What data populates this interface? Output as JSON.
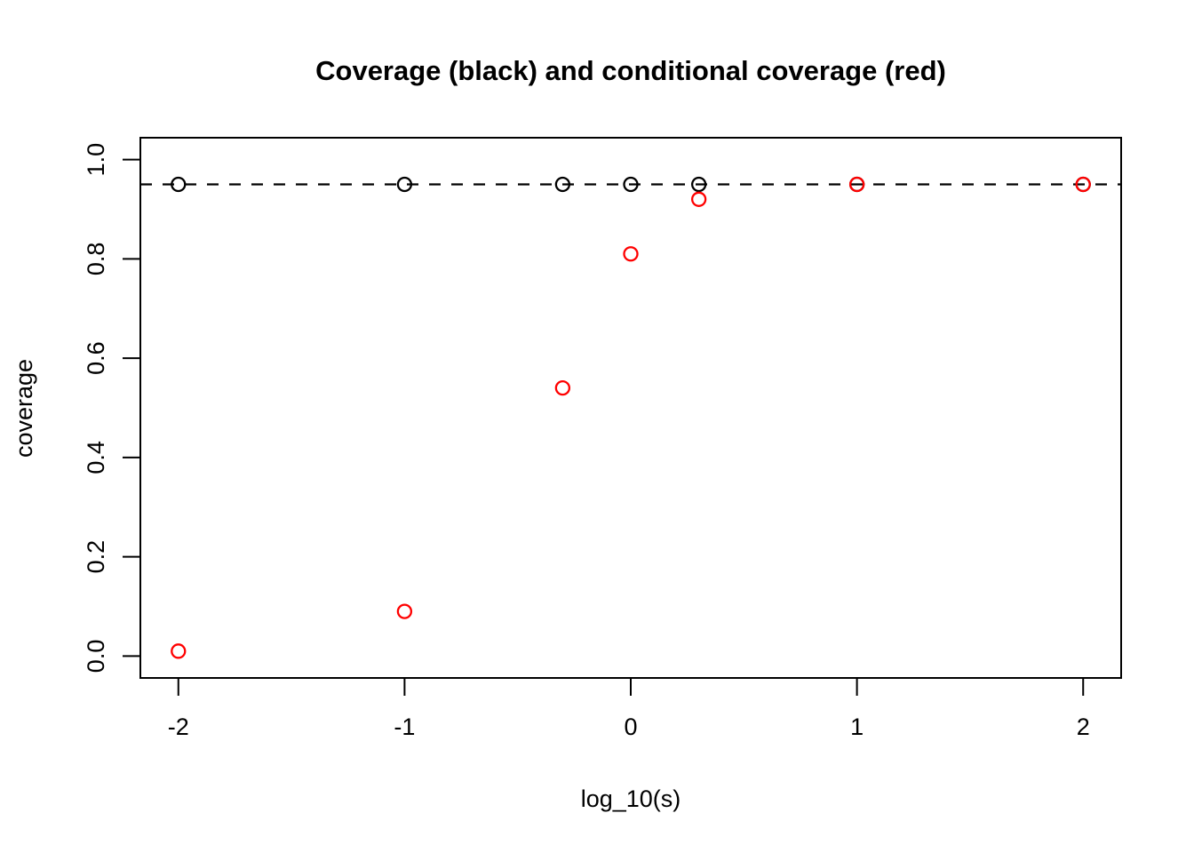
{
  "chart_data": {
    "type": "scatter",
    "title": "Coverage (black) and conditional coverage (red)",
    "xlabel": "log_10(s)",
    "ylabel": "coverage",
    "xlim": [
      -2.168,
      2.168
    ],
    "ylim": [
      -0.044,
      1.044
    ],
    "grid": false,
    "legend": "none (encoded in title colors)",
    "x_ticks": {
      "values": [
        -2,
        -1,
        0,
        1,
        2
      ],
      "labels": [
        "-2",
        "-1",
        "0",
        "1",
        "2"
      ]
    },
    "y_ticks": {
      "values": [
        0.0,
        0.2,
        0.4,
        0.6,
        0.8,
        1.0
      ],
      "labels": [
        "0.0",
        "0.2",
        "0.4",
        "0.6",
        "0.8",
        "1.0"
      ]
    },
    "reference_line": {
      "y": 0.95,
      "style": "dashed",
      "color": "#000000"
    },
    "x": [
      -2,
      -1,
      -0.301,
      0,
      0.301,
      1,
      2
    ],
    "series": [
      {
        "name": "coverage",
        "color": "#000000",
        "values": [
          0.95,
          0.95,
          0.95,
          0.95,
          0.95,
          0.95,
          0.95
        ]
      },
      {
        "name": "conditional coverage",
        "color": "#FF0000",
        "values": [
          0.01,
          0.09,
          0.54,
          0.81,
          0.92,
          0.95,
          0.95
        ]
      }
    ],
    "marker": "open-circle",
    "colors": {
      "black_series": "#000000",
      "red_series": "#FF0000",
      "background": "#FFFFFF",
      "frame": "#000000"
    }
  }
}
